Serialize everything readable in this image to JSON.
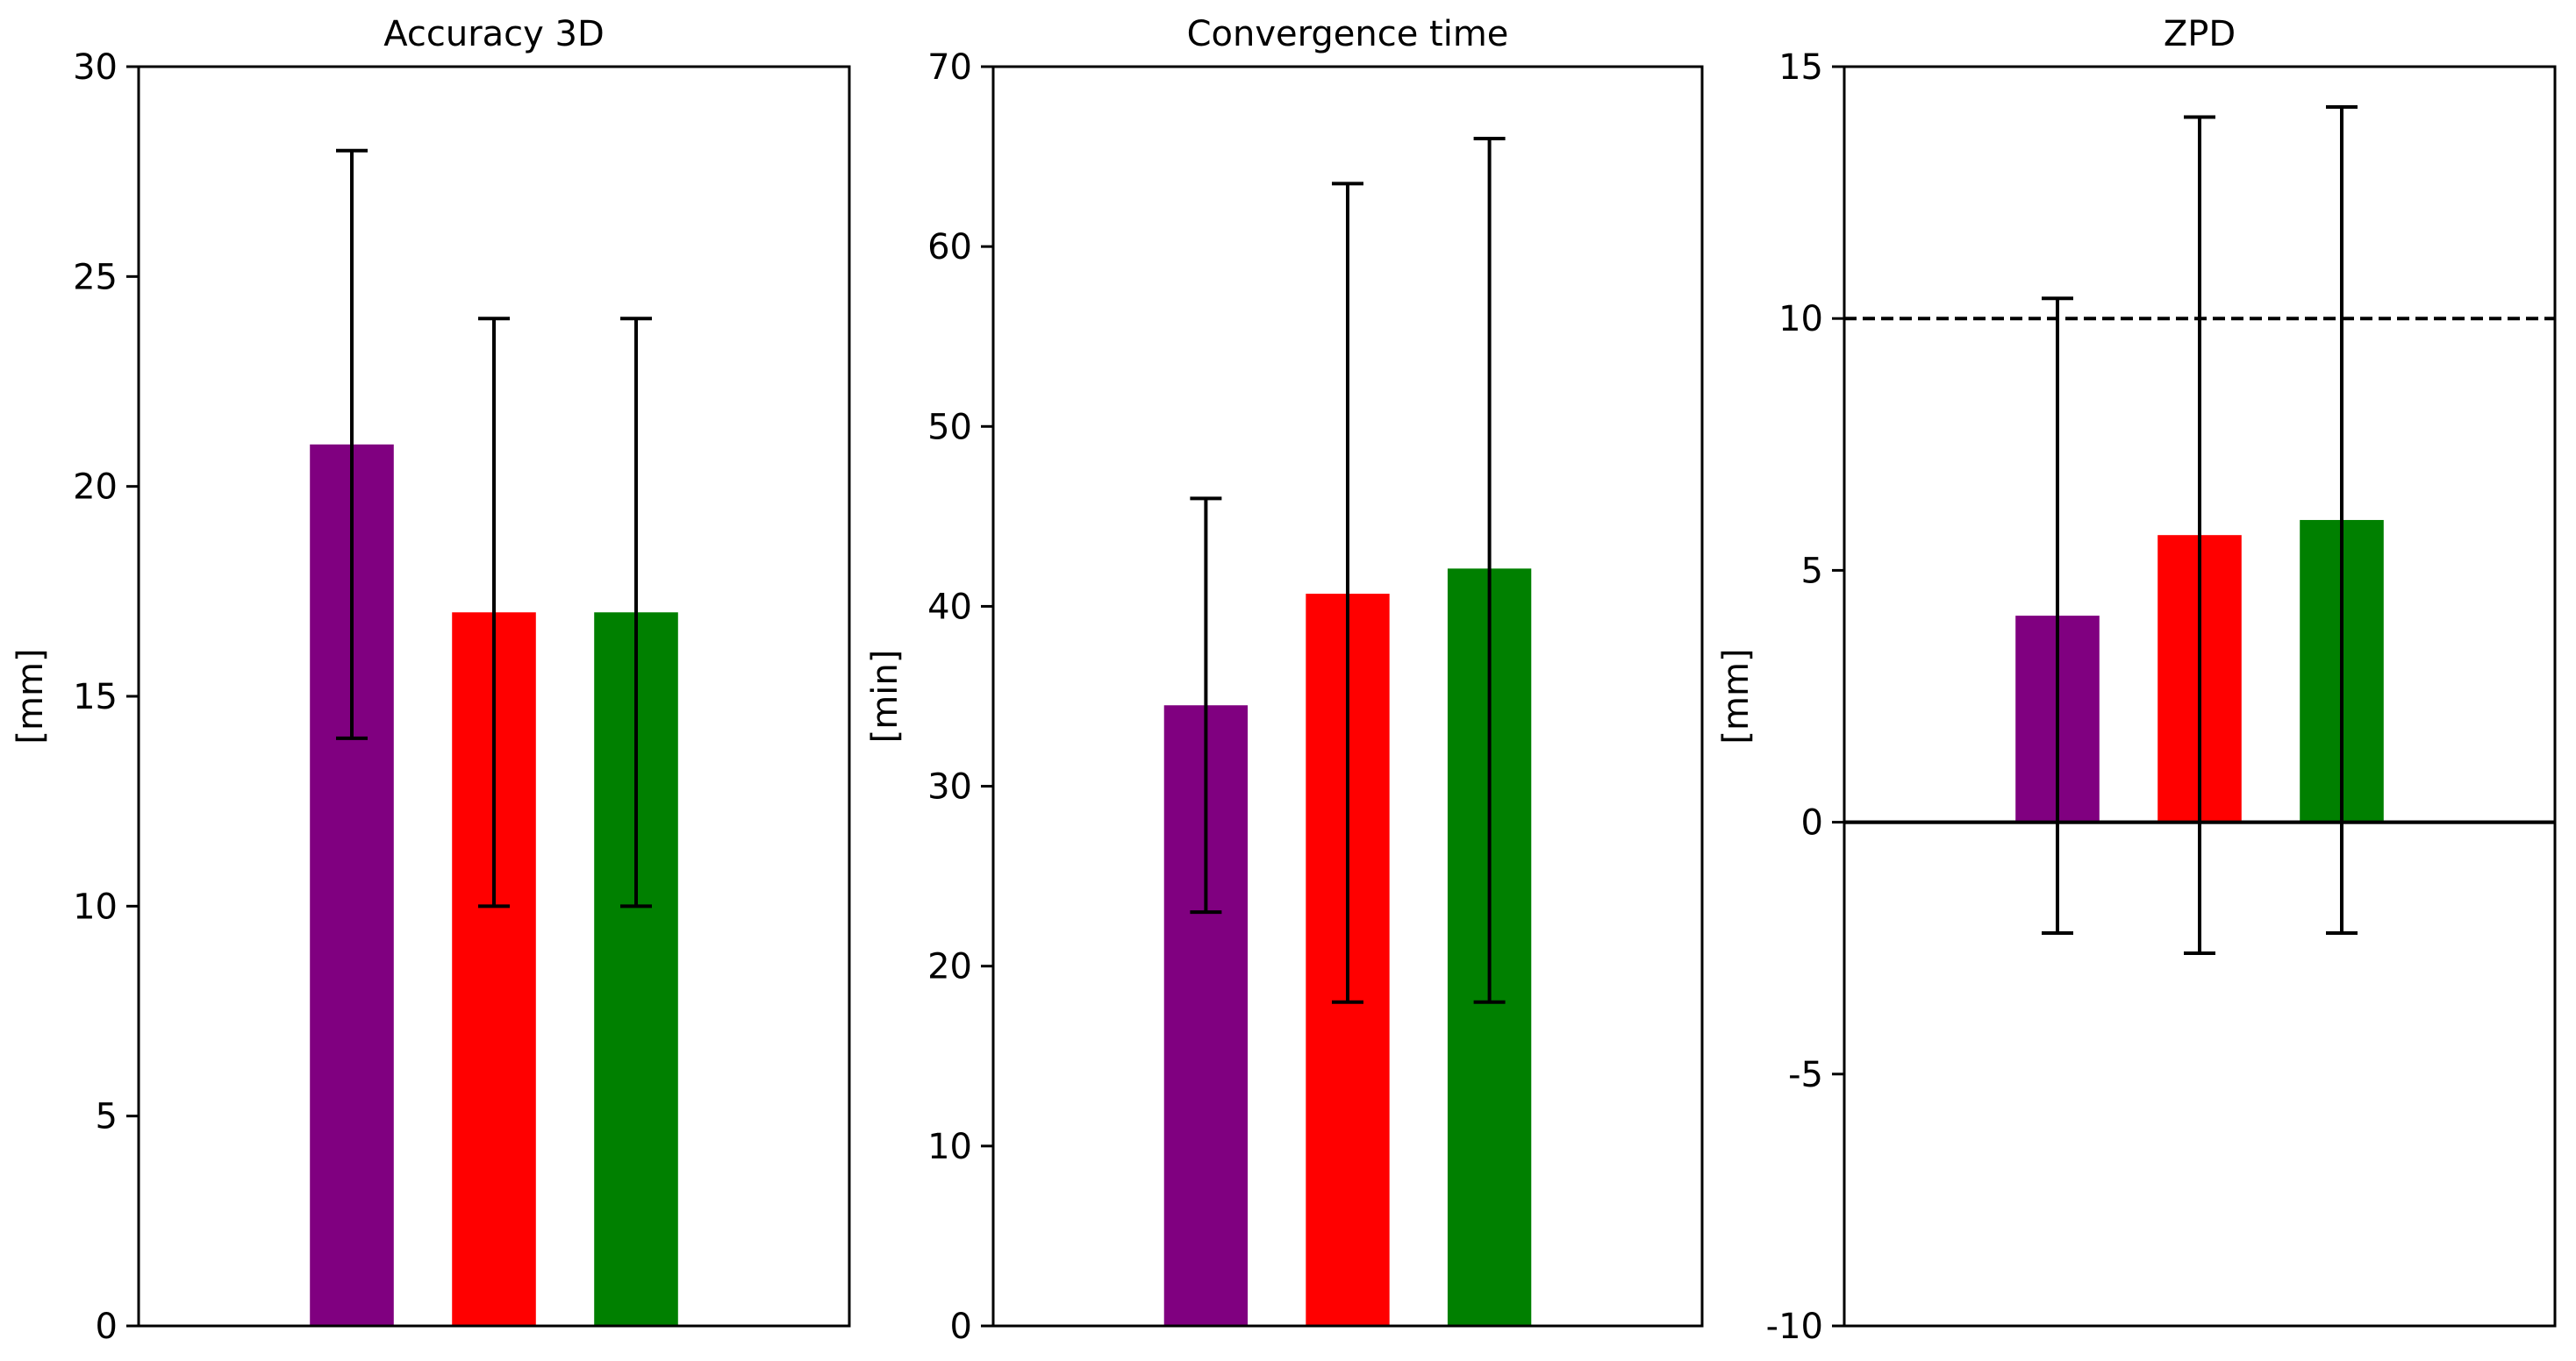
{
  "chart_data": [
    {
      "type": "bar",
      "title": "Accuracy 3D",
      "xlabel": "",
      "ylabel": "[mm]",
      "ylim": [
        0,
        30
      ],
      "yticks": [
        0,
        5,
        10,
        15,
        20,
        25,
        30
      ],
      "ytick_labels": [
        "0",
        "5",
        "10",
        "15",
        "20",
        "25",
        "30"
      ],
      "grid": false,
      "series": [
        {
          "name": "purple",
          "color": "#800080",
          "value": 21.0,
          "err_low": 14.0,
          "err_high": 28.0
        },
        {
          "name": "red",
          "color": "#ff0000",
          "value": 17.0,
          "err_low": 10.0,
          "err_high": 24.0
        },
        {
          "name": "green",
          "color": "#008000",
          "value": 17.0,
          "err_low": 10.0,
          "err_high": 24.0
        }
      ],
      "reference_lines": []
    },
    {
      "type": "bar",
      "title": "Convergence time",
      "xlabel": "",
      "ylabel": "[min]",
      "ylim": [
        0,
        70
      ],
      "yticks": [
        0,
        10,
        20,
        30,
        40,
        50,
        60,
        70
      ],
      "ytick_labels": [
        "0",
        "10",
        "20",
        "30",
        "40",
        "50",
        "60",
        "70"
      ],
      "grid": false,
      "series": [
        {
          "name": "purple",
          "color": "#800080",
          "value": 34.5,
          "err_low": 23.0,
          "err_high": 46.0
        },
        {
          "name": "red",
          "color": "#ff0000",
          "value": 40.7,
          "err_low": 18.0,
          "err_high": 63.5
        },
        {
          "name": "green",
          "color": "#008000",
          "value": 42.1,
          "err_low": 18.0,
          "err_high": 66.0
        }
      ],
      "reference_lines": []
    },
    {
      "type": "bar",
      "title": "ZPD",
      "xlabel": "",
      "ylabel": "[mm]",
      "ylim": [
        -10,
        15
      ],
      "yticks": [
        -10,
        -5,
        0,
        5,
        10,
        15
      ],
      "ytick_labels": [
        "-10",
        "-5",
        "0",
        "5",
        "10",
        "15"
      ],
      "grid": false,
      "series": [
        {
          "name": "purple",
          "color": "#800080",
          "value": 4.1,
          "err_low": -2.2,
          "err_high": 10.4
        },
        {
          "name": "red",
          "color": "#ff0000",
          "value": 5.7,
          "err_low": -2.6,
          "err_high": 14.0
        },
        {
          "name": "green",
          "color": "#008000",
          "value": 6.0,
          "err_low": -2.2,
          "err_high": 14.2
        }
      ],
      "reference_lines": [
        {
          "name": "zero-line",
          "value": 0,
          "style": "solid"
        },
        {
          "name": "threshold-line",
          "value": 10,
          "style": "dashed"
        }
      ]
    }
  ]
}
